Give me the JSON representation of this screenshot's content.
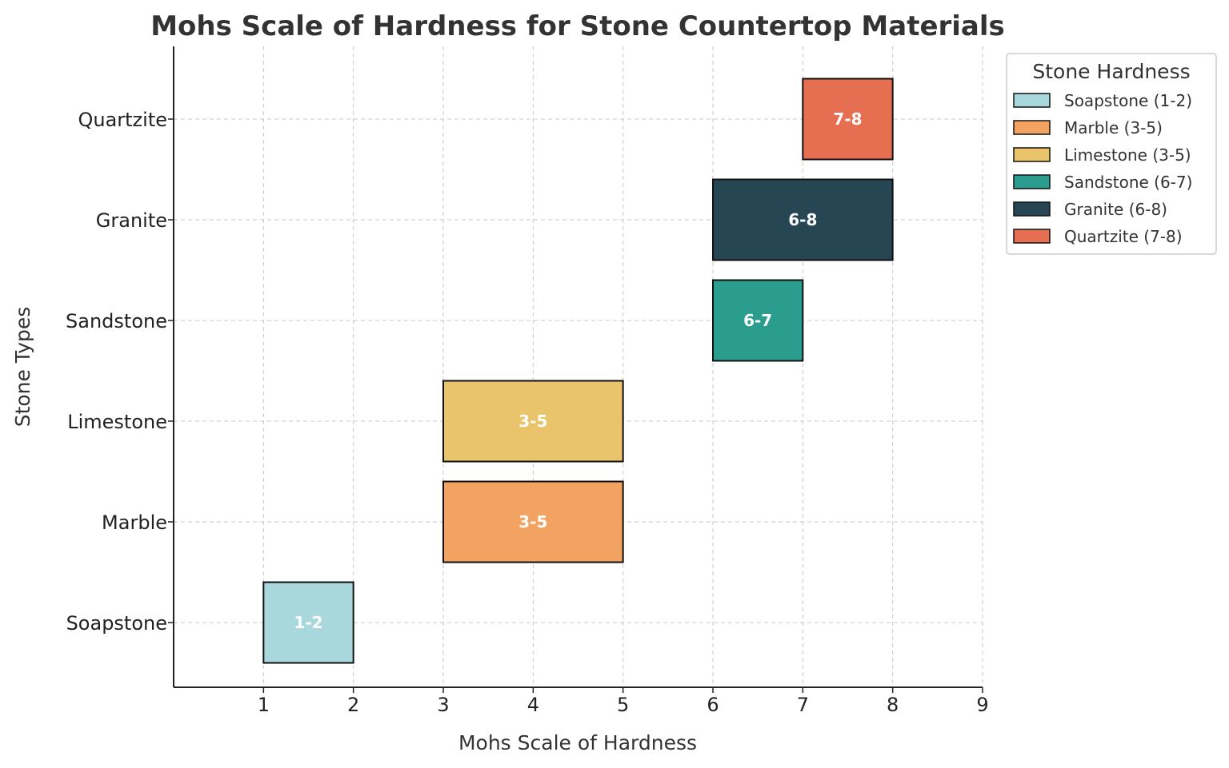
{
  "chart_data": {
    "type": "bar",
    "orientation": "horizontal-range",
    "title": "Mohs Scale of Hardness for Stone Countertop Materials",
    "xlabel": "Mohs Scale of Hardness",
    "ylabel": "Stone Types",
    "xlim": [
      0,
      9
    ],
    "xticks": [
      1,
      2,
      3,
      4,
      5,
      6,
      7,
      8,
      9
    ],
    "grid": true,
    "categories": [
      "Soapstone",
      "Marble",
      "Limestone",
      "Sandstone",
      "Granite",
      "Quartzite"
    ],
    "series": [
      {
        "name": "Soapstone",
        "start": 1,
        "end": 2,
        "label": "1-2",
        "color": "#a8d8dc",
        "legend": "Soapstone (1-2)"
      },
      {
        "name": "Marble",
        "start": 3,
        "end": 5,
        "label": "3-5",
        "color": "#f3a361",
        "legend": "Marble (3-5)"
      },
      {
        "name": "Limestone",
        "start": 3,
        "end": 5,
        "label": "3-5",
        "color": "#e9c46a",
        "legend": "Limestone (3-5)"
      },
      {
        "name": "Sandstone",
        "start": 6,
        "end": 7,
        "label": "6-7",
        "color": "#2a9d8f",
        "legend": "Sandstone (6-7)"
      },
      {
        "name": "Granite",
        "start": 6,
        "end": 8,
        "label": "6-8",
        "color": "#264653",
        "legend": "Granite (6-8)"
      },
      {
        "name": "Quartzite",
        "start": 7,
        "end": 8,
        "label": "7-8",
        "color": "#e76f51",
        "legend": "Quartzite (7-8)"
      }
    ],
    "legend": {
      "title": "Stone Hardness",
      "placement": "outside-top-right"
    }
  }
}
